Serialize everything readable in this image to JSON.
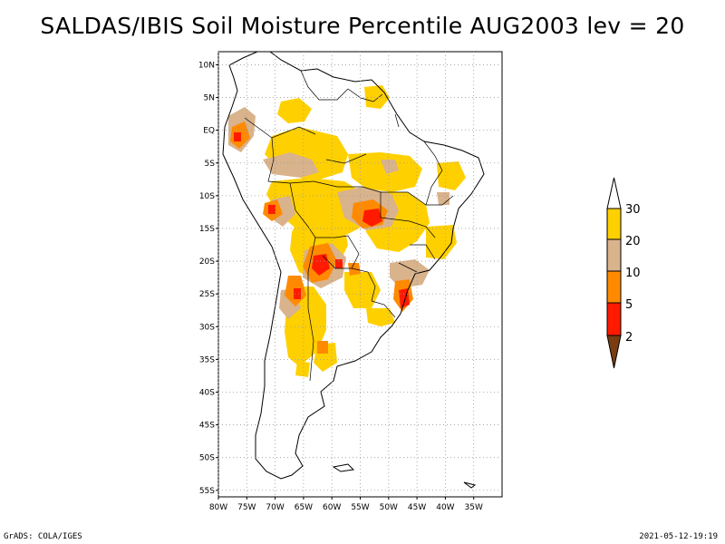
{
  "title": "SALDAS/IBIS Soil Moisture Percentile AUG2003 lev = 20",
  "footer": {
    "left": "GrADS: COLA/IGES",
    "right": "2021-05-12-19:19"
  },
  "map": {
    "lon_range": [
      -80,
      -30
    ],
    "lat_range": [
      -56,
      12
    ],
    "grid": true,
    "lat_labels": [
      "10N",
      "5N",
      "EQ",
      "5S",
      "10S",
      "15S",
      "20S",
      "25S",
      "30S",
      "35S",
      "40S",
      "45S",
      "50S",
      "55S"
    ],
    "lat_values": [
      10,
      5,
      0,
      -5,
      -10,
      -15,
      -20,
      -25,
      -30,
      -35,
      -40,
      -45,
      -50,
      -55
    ],
    "lon_labels": [
      "80W",
      "75W",
      "70W",
      "65W",
      "60W",
      "55W",
      "50W",
      "45W",
      "40W",
      "35W"
    ],
    "lon_values": [
      -80,
      -75,
      -70,
      -65,
      -60,
      -55,
      -50,
      -45,
      -40,
      -35
    ]
  },
  "colorbar": {
    "labels": [
      "30",
      "20",
      "10",
      "5",
      "2"
    ],
    "colors": {
      "above30": "#ffffff",
      "20_30": "#ffd000",
      "10_20": "#d9b38c",
      "5_10": "#ff8a00",
      "2_5": "#ff1a00",
      "below2": "#7a3d12"
    }
  }
}
